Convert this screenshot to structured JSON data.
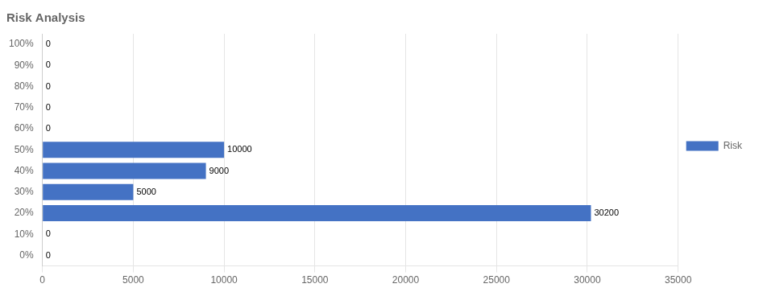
{
  "chart_data": {
    "type": "bar",
    "orientation": "horizontal",
    "title": "Risk Analysis",
    "categories": [
      "100%",
      "90%",
      "80%",
      "70%",
      "60%",
      "50%",
      "40%",
      "30%",
      "20%",
      "10%",
      "0%"
    ],
    "series": [
      {
        "name": "Risk",
        "color": "#4472c4",
        "values": [
          0,
          0,
          0,
          0,
          0,
          10000,
          9000,
          5000,
          30200,
          0,
          0
        ]
      }
    ],
    "xlim": [
      0,
      35000
    ],
    "xticks": [
      0,
      5000,
      10000,
      15000,
      20000,
      25000,
      30000,
      35000
    ],
    "grid": true,
    "legend": "right",
    "data_labels": true
  }
}
